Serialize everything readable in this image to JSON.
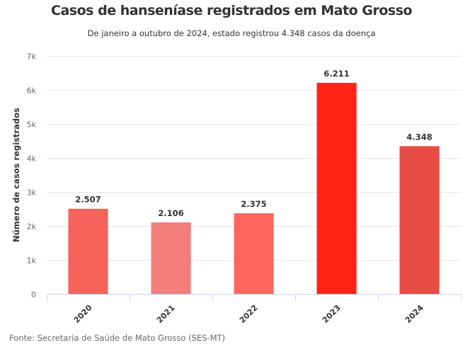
{
  "chart_data": {
    "type": "bar",
    "title": "Casos de hanseníase registrados em Mato Grosso",
    "subtitle": "De janeiro a outubro de 2024, estado registrou 4.348 casos da doença",
    "xlabel": "",
    "ylabel": "Número de casos registrados",
    "categories": [
      "2020",
      "2021",
      "2022",
      "2023",
      "2024"
    ],
    "values": [
      2507,
      2106,
      2375,
      6211,
      4348
    ],
    "data_labels": [
      "2.507",
      "2.106",
      "2.375",
      "6.211",
      "4.348"
    ],
    "colors": [
      "#f5635a",
      "#f47f7a",
      "#ff675e",
      "#ff2416",
      "#e84d44"
    ],
    "ylim": [
      0,
      7000
    ],
    "yticks": [
      0,
      1000,
      2000,
      3000,
      4000,
      5000,
      6000,
      7000
    ],
    "ytick_labels": [
      "0",
      "1k",
      "2k",
      "3k",
      "4k",
      "5k",
      "6k",
      "7k"
    ],
    "grid": true,
    "legend": "none",
    "source": "Fonte: Secretaria de Saúde de Mato Grosso (SES-MT)"
  }
}
